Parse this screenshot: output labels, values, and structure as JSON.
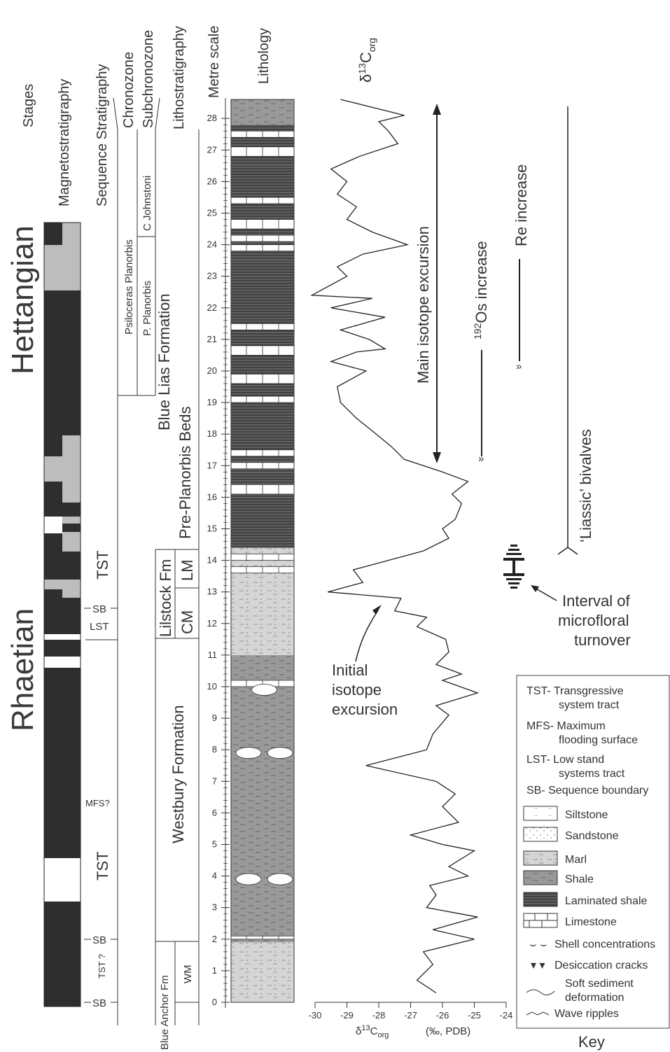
{
  "headers": {
    "stages": "Stages",
    "magnetostratigraphy": "Magnetostratigraphy",
    "sequence_stratigraphy": "Sequence Stratigraphy",
    "chronozone": "Chronozone",
    "subchronozone": "Subchronozone",
    "lithostratigraphy": "Lithostratigraphy",
    "metre_scale": "Metre scale",
    "lithology": "Lithology"
  },
  "stages": [
    "Hettangian",
    "Rhaetian"
  ],
  "sequence_labels": [
    "TST",
    "SB",
    "LST",
    "MFS?",
    "TST",
    "SB",
    "TST ?",
    "SB"
  ],
  "zones": {
    "chronozone": "Psiloceras Planorbis",
    "sub_upper": "C Johnstoni",
    "sub_lower": "P. Planorbis"
  },
  "formations": {
    "blue_lias": "Blue Lias Formation",
    "pre_planorbis": "Pre-Planorbis Beds",
    "lilstock": "Lilstock Fm",
    "lm": "LM",
    "cm": "CM",
    "westbury": "Westbury Formation",
    "blue_anchor": "Blue Anchor Fm",
    "wm": "WM"
  },
  "metre_ticks": [
    "0",
    "1",
    "2",
    "3",
    "4",
    "5",
    "6",
    "7",
    "8",
    "9",
    "10",
    "11",
    "12",
    "13",
    "14",
    "15",
    "16",
    "17",
    "18",
    "19",
    "20",
    "21",
    "22",
    "23",
    "24",
    "25",
    "26",
    "27",
    "28"
  ],
  "chart_data": {
    "type": "line",
    "title_main": "δ",
    "title_sup": "13",
    "title_sub": "C",
    "title_subscript": "org",
    "xlabel_main": "δ",
    "xlabel_sup": "13",
    "xlabel_c": "C",
    "xlabel_sub": "org",
    "xlabel_units": "(‰, PDB)",
    "xlim": [
      -30,
      -24
    ],
    "ylim": [
      0,
      28
    ],
    "x_ticks": [
      "-30",
      "-29",
      "-28",
      "-27",
      "-26",
      "-25",
      "-24"
    ],
    "series": [
      {
        "points": [
          [
            -26.2,
            0.3
          ],
          [
            -26.8,
            0.7
          ],
          [
            -26.3,
            1.2
          ],
          [
            -26.6,
            1.6
          ],
          [
            -25.0,
            2.0
          ],
          [
            -26.3,
            2.3
          ],
          [
            -24.9,
            2.7
          ],
          [
            -26.5,
            3.0
          ],
          [
            -26.2,
            3.4
          ],
          [
            -26.4,
            3.7
          ],
          [
            -25.2,
            4.0
          ],
          [
            -25.8,
            4.3
          ],
          [
            -25.0,
            4.8
          ],
          [
            -26.0,
            5.0
          ],
          [
            -27.0,
            5.3
          ],
          [
            -25.5,
            5.7
          ],
          [
            -26.0,
            6.2
          ],
          [
            -25.6,
            6.6
          ],
          [
            -26.2,
            7.0
          ],
          [
            -28.4,
            7.5
          ],
          [
            -26.5,
            8.0
          ],
          [
            -26.3,
            8.5
          ],
          [
            -25.8,
            9.1
          ],
          [
            -26.2,
            9.4
          ],
          [
            -24.9,
            9.8
          ],
          [
            -26.0,
            10.2
          ],
          [
            -25.4,
            10.4
          ],
          [
            -26.2,
            10.7
          ],
          [
            -25.8,
            11.1
          ],
          [
            -25.9,
            11.5
          ],
          [
            -26.8,
            11.9
          ],
          [
            -26.5,
            12.2
          ],
          [
            -27.5,
            12.4
          ],
          [
            -27.3,
            12.8
          ],
          [
            -29.6,
            13.0
          ],
          [
            -28.5,
            13.3
          ],
          [
            -28.8,
            13.7
          ],
          [
            -27.7,
            14.0
          ],
          [
            -26.6,
            14.3
          ],
          [
            -25.8,
            14.7
          ],
          [
            -26.0,
            15.0
          ],
          [
            -25.6,
            15.3
          ],
          [
            -25.4,
            15.8
          ],
          [
            -25.7,
            16.1
          ],
          [
            -25.2,
            16.5
          ],
          [
            -26.0,
            16.8
          ],
          [
            -27.2,
            17.2
          ],
          [
            -27.6,
            17.6
          ],
          [
            -28.2,
            18.1
          ],
          [
            -28.7,
            18.5
          ],
          [
            -29.2,
            19.0
          ],
          [
            -29.3,
            19.5
          ],
          [
            -28.4,
            20.0
          ],
          [
            -29.5,
            20.3
          ],
          [
            -28.7,
            20.6
          ],
          [
            -27.8,
            20.7
          ],
          [
            -28.3,
            21.0
          ],
          [
            -29.2,
            21.3
          ],
          [
            -27.8,
            21.7
          ],
          [
            -29.5,
            22.0
          ],
          [
            -28.2,
            22.3
          ],
          [
            -30.1,
            22.4
          ],
          [
            -29.0,
            23.0
          ],
          [
            -29.3,
            23.3
          ],
          [
            -28.5,
            23.7
          ],
          [
            -27.1,
            24.0
          ],
          [
            -28.2,
            24.4
          ],
          [
            -29.0,
            24.8
          ],
          [
            -28.7,
            25.2
          ],
          [
            -29.3,
            25.6
          ],
          [
            -29.0,
            26.0
          ],
          [
            -29.5,
            26.4
          ],
          [
            -28.6,
            26.8
          ],
          [
            -27.4,
            27.2
          ],
          [
            -27.7,
            27.6
          ],
          [
            -28.0,
            27.9
          ],
          [
            -27.2,
            28.1
          ],
          [
            -29.2,
            28.6
          ]
        ]
      }
    ]
  },
  "annotations": {
    "main_excursion": "Main isotope excursion",
    "os_sup": "192",
    "os_increase": "Os increase",
    "re_increase": "Re increase",
    "liassic": "‘Liassic’ bivalves",
    "interval_l1": "Interval of",
    "interval_l2": "microfloral",
    "interval_l3": "turnover",
    "initial_l1": "Initial",
    "initial_l2": "isotope",
    "initial_l3": "excursion"
  },
  "key": {
    "title": "Key",
    "defs": [
      "TST- Transgressive",
      "system tract",
      "MFS- Maximum",
      "flooding surface",
      "LST- Low stand",
      "systems tract",
      "SB- Sequence boundary"
    ],
    "lith": [
      "Siltstone",
      "Sandstone",
      "Marl",
      "Shale",
      "Laminated shale",
      "Limestone"
    ],
    "symbols": [
      "Shell concentrations",
      "Desiccation cracks",
      "Soft sediment",
      "deformation",
      "Wave ripples"
    ]
  }
}
